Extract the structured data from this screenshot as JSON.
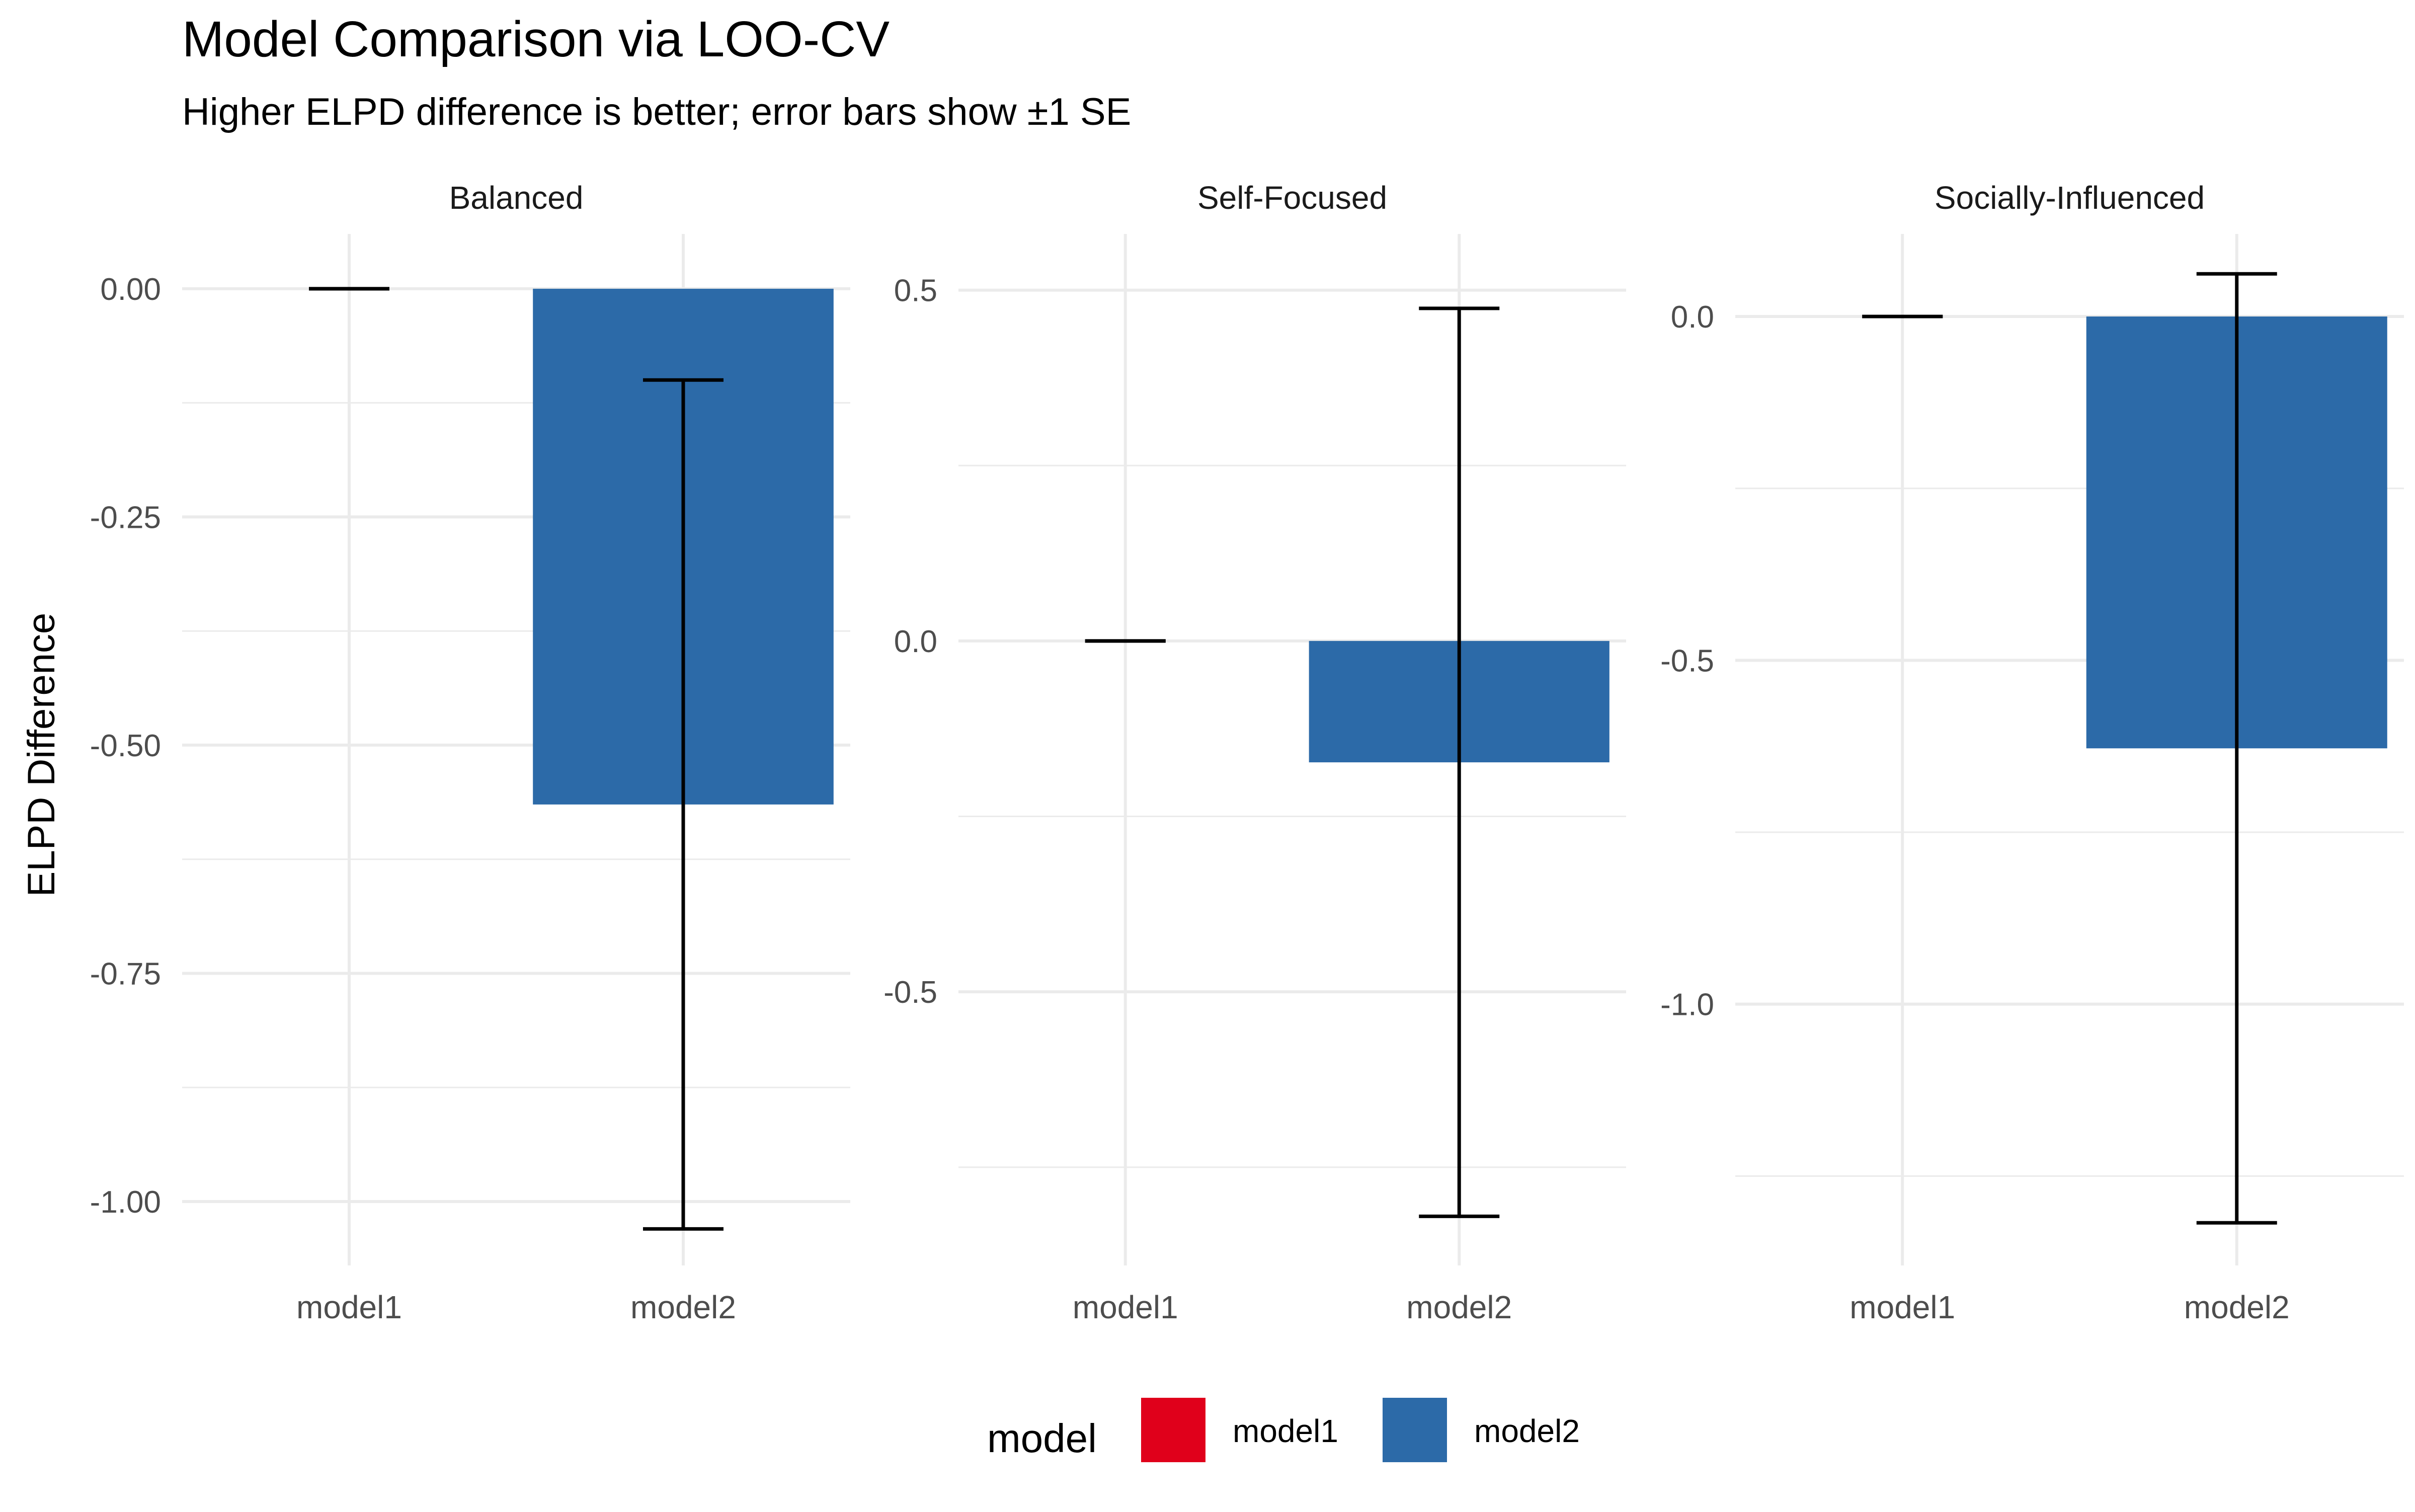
{
  "chart_data": {
    "type": "bar",
    "title": "Model Comparison via LOO-CV",
    "subtitle": "Higher ELPD difference is better; error bars show ±1 SE",
    "ylabel": "ELPD Difference",
    "xlabel": "",
    "grid": true,
    "legend": {
      "title": "model",
      "position": "bottom",
      "items": [
        {
          "label": "model1",
          "color": "#E0001B"
        },
        {
          "label": "model2",
          "color": "#2C6AA8"
        }
      ]
    },
    "categories": [
      "model1",
      "model2"
    ],
    "panels": [
      {
        "name": "Balanced",
        "ylim": [
          -1.07,
          0.06
        ],
        "yticks": [
          0.0,
          -0.25,
          -0.5,
          -0.75,
          -1.0
        ],
        "ytick_labels": [
          "0.00",
          "-0.25",
          "-0.50",
          "-0.75",
          "-1.00"
        ],
        "values": [
          0.0,
          -0.565
        ],
        "se": [
          0.0,
          0.465
        ]
      },
      {
        "name": "Self-Focused",
        "ylim": [
          -0.89,
          0.58
        ],
        "yticks": [
          0.5,
          0.0,
          -0.5
        ],
        "ytick_labels": [
          "0.5",
          "0.0",
          "-0.5"
        ],
        "values": [
          0.0,
          -0.173
        ],
        "se": [
          0.0,
          0.647
        ]
      },
      {
        "name": "Socially-Influenced",
        "ylim": [
          -1.38,
          0.12
        ],
        "yticks": [
          0.0,
          -0.5,
          -1.0
        ],
        "ytick_labels": [
          "0.0",
          "-0.5",
          "-1.0"
        ],
        "values": [
          0.0,
          -0.628
        ],
        "se": [
          0.0,
          0.69
        ]
      }
    ]
  }
}
